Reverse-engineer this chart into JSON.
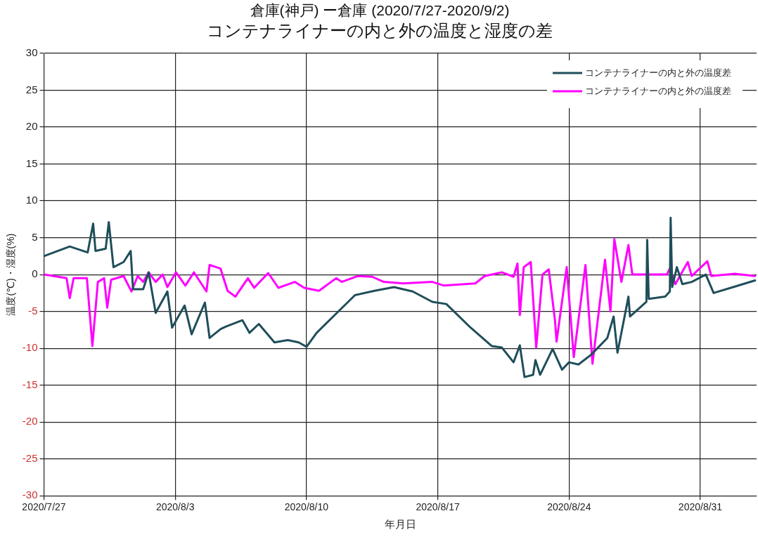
{
  "chart_data": {
    "type": "line",
    "title": "倉庫(神戸) ー倉庫 (2020/7/27-2020/9/2)",
    "subtitle": "コンテナライナーの内と外の温度と湿度の差",
    "xlabel": "年月日",
    "ylabel": "温度(℃)・湿度(%)",
    "xlim": [
      "2020-07-27",
      "2020-09-03"
    ],
    "xticks": [
      {
        "value": "2020-07-27",
        "label": "2020/7/27"
      },
      {
        "value": "2020-08-03",
        "label": "2020/8/3"
      },
      {
        "value": "2020-08-10",
        "label": "2020/8/10"
      },
      {
        "value": "2020-08-17",
        "label": "2020/8/17"
      },
      {
        "value": "2020-08-24",
        "label": "2020/8/24"
      },
      {
        "value": "2020-08-31",
        "label": "2020/8/31"
      }
    ],
    "ylim": [
      -30,
      30
    ],
    "yticks": [
      -30,
      -25,
      -20,
      -15,
      -10,
      -5,
      0,
      5,
      10,
      15,
      20,
      25,
      30
    ],
    "grid": true,
    "legend": "top right",
    "marker": "none",
    "line_style": "solid",
    "series": [
      {
        "name": "コンテナライナーの内と外の温度差",
        "color": "#1f4e5a",
        "x": [
          "2020-07-27T00:00",
          "2020-07-28T09:00",
          "2020-07-29T08:00",
          "2020-07-29T15:00",
          "2020-07-29T18:00",
          "2020-07-30T07:00",
          "2020-07-30T11:00",
          "2020-07-30T17:00",
          "2020-07-31T06:00",
          "2020-07-31T15:00",
          "2020-07-31T18:00",
          "2020-08-01T07:00",
          "2020-08-01T14:00",
          "2020-08-01T23:00",
          "2020-08-02T14:00",
          "2020-08-02T20:00",
          "2020-08-03T12:00",
          "2020-08-03T21:00",
          "2020-08-04T14:00",
          "2020-08-04T20:00",
          "2020-08-05T10:00",
          "2020-08-05T16:00",
          "2020-08-06T14:00",
          "2020-08-06T23:00",
          "2020-08-07T11:00",
          "2020-08-08T07:00",
          "2020-08-09T00:00",
          "2020-08-09T14:00",
          "2020-08-10T00:00",
          "2020-08-10T13:00",
          "2020-08-11T14:00",
          "2020-08-12T14:00",
          "2020-08-13T15:00",
          "2020-08-14T16:00",
          "2020-08-15T16:00",
          "2020-08-16T17:00",
          "2020-08-17T11:00",
          "2020-08-18T18:00",
          "2020-08-19T21:00",
          "2020-08-20T10:00",
          "2020-08-21T01:00",
          "2020-08-21T09:00",
          "2020-08-21T15:00",
          "2020-08-22T02:00",
          "2020-08-22T05:00",
          "2020-08-22T11:00",
          "2020-08-23T03:00",
          "2020-08-23T15:00",
          "2020-08-24T00:00",
          "2020-08-24T12:00",
          "2020-08-25T04:00",
          "2020-08-26T01:00",
          "2020-08-26T09:00",
          "2020-08-26T14:00",
          "2020-08-27T04:00",
          "2020-08-27T06:00",
          "2020-08-28T03:00",
          "2020-08-28T04:00",
          "2020-08-28T06:00",
          "2020-08-29T03:00",
          "2020-08-29T09:00",
          "2020-08-29T10:00",
          "2020-08-29T12:00",
          "2020-08-29T18:00",
          "2020-08-30T01:00",
          "2020-08-30T13:00",
          "2020-08-31T07:00",
          "2020-08-31T17:00",
          "2020-09-01T18:00",
          "2020-09-02T22:00"
        ],
        "values": [
          2.5,
          3.8,
          3.0,
          6.9,
          3.2,
          3.5,
          7.1,
          1.0,
          1.7,
          3.2,
          -2.0,
          -2.0,
          0.3,
          -5.2,
          -2.3,
          -7.2,
          -4.2,
          -8.1,
          -3.8,
          -8.6,
          -7.4,
          -7.1,
          -6.2,
          -7.9,
          -6.7,
          -9.2,
          -8.9,
          -9.2,
          -9.8,
          -7.9,
          -5.3,
          -2.8,
          -2.2,
          -1.7,
          -2.3,
          -3.7,
          -4.0,
          -7.2,
          -9.7,
          -9.9,
          -11.9,
          -9.6,
          -13.9,
          -13.6,
          -11.6,
          -13.6,
          -10.1,
          -12.9,
          -11.9,
          -12.2,
          -10.9,
          -8.6,
          -5.7,
          -10.6,
          -3.0,
          -5.7,
          -3.7,
          4.7,
          -3.3,
          -3.0,
          -2.3,
          7.7,
          -1.7,
          1.0,
          -1.3,
          -1.0,
          0.0,
          -2.5,
          -1.7,
          -0.8
        ]
      },
      {
        "name": "コンテナライナーの内と外の温度差",
        "color": "#ff00ff",
        "x": [
          "2020-07-27T00:00",
          "2020-07-28T05:00",
          "2020-07-28T09:00",
          "2020-07-28T14:00",
          "2020-07-29T07:00",
          "2020-07-29T14:00",
          "2020-07-29T21:00",
          "2020-07-30T05:00",
          "2020-07-30T09:00",
          "2020-07-30T14:00",
          "2020-07-31T06:00",
          "2020-07-31T16:00",
          "2020-08-01T00:00",
          "2020-08-01T07:00",
          "2020-08-01T14:00",
          "2020-08-01T23:00",
          "2020-08-02T08:00",
          "2020-08-02T14:00",
          "2020-08-03T01:00",
          "2020-08-03T13:00",
          "2020-08-04T00:00",
          "2020-08-04T16:00",
          "2020-08-04T20:00",
          "2020-08-05T10:00",
          "2020-08-05T19:00",
          "2020-08-06T05:00",
          "2020-08-06T21:00",
          "2020-08-07T05:00",
          "2020-08-07T23:00",
          "2020-08-08T12:00",
          "2020-08-09T09:00",
          "2020-08-09T21:00",
          "2020-08-10T16:00",
          "2020-08-11T14:00",
          "2020-08-11T21:00",
          "2020-08-12T18:00",
          "2020-08-13T12:00",
          "2020-08-14T03:00",
          "2020-08-15T04:00",
          "2020-08-16T17:00",
          "2020-08-17T08:00",
          "2020-08-19T00:00",
          "2020-08-19T12:00",
          "2020-08-20T10:00",
          "2020-08-21T01:00",
          "2020-08-21T06:00",
          "2020-08-21T09:00",
          "2020-08-21T14:00",
          "2020-08-21T23:00",
          "2020-08-22T06:00",
          "2020-08-22T14:00",
          "2020-08-22T22:00",
          "2020-08-23T06:00",
          "2020-08-23T08:00",
          "2020-08-23T21:00",
          "2020-08-24T06:00",
          "2020-08-24T21:00",
          "2020-08-25T06:00",
          "2020-08-25T22:00",
          "2020-08-26T05:00",
          "2020-08-26T10:00",
          "2020-08-26T19:00",
          "2020-08-27T04:00",
          "2020-08-27T09:00",
          "2020-08-29T05:00",
          "2020-08-29T09:00",
          "2020-08-29T16:00",
          "2020-08-30T08:00",
          "2020-08-30T13:00",
          "2020-08-31T09:00",
          "2020-08-31T14:00",
          "2020-09-01T20:00",
          "2020-09-02T22:00"
        ],
        "values": [
          0,
          -0.5,
          -3.2,
          -0.5,
          -0.5,
          -9.7,
          -1.0,
          -0.5,
          -4.5,
          -0.7,
          -0.2,
          -2.3,
          -0.2,
          -1.0,
          0.3,
          -1.0,
          0,
          -1.7,
          0.3,
          -1.5,
          0.3,
          -2.3,
          1.3,
          0.8,
          -2.2,
          -3.0,
          -0.5,
          -1.8,
          0.2,
          -1.8,
          -1.0,
          -1.8,
          -2.2,
          -0.5,
          -1.0,
          -0.2,
          -0.3,
          -1.0,
          -1.2,
          -1.0,
          -1.5,
          -1.2,
          -0.2,
          0.3,
          -0.3,
          1.5,
          -5.5,
          1.0,
          1.7,
          -9.9,
          0,
          0.7,
          -6.2,
          -9.1,
          1.0,
          -11.2,
          1.3,
          -12.1,
          2.0,
          -5.0,
          4.8,
          -1.0,
          4.0,
          0,
          0,
          0.8,
          -1.3,
          1.7,
          -0.2,
          1.8,
          -0.2,
          0.1,
          -0.2
        ]
      }
    ]
  }
}
